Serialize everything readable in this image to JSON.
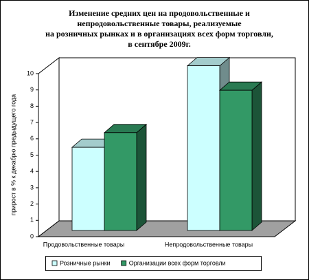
{
  "chart_data": {
    "type": "bar3d",
    "title": [
      "Изменение средних цен на продовольственные и",
      "непродовольственные товары, реализуемые",
      "на розничных рынках и в организациях всех форм торговли,",
      "в сентябре 2009г."
    ],
    "y_label": "прирост в % к декабрю предыдущего года",
    "categories": [
      "Продовольственные товары",
      "Непродовольственные товары"
    ],
    "series": [
      {
        "name": "Розничные рынки",
        "color": "#ccffff",
        "values": [
          5.1,
          10.1
        ]
      },
      {
        "name": "Организации всех форм торговли",
        "color": "#339966",
        "values": [
          6.0,
          8.6
        ]
      }
    ],
    "ylim": [
      0,
      10
    ],
    "yticks": [
      0,
      1,
      2,
      3,
      4,
      5,
      6,
      7,
      8,
      9,
      10
    ],
    "grid": false,
    "legend": "bottom",
    "floor_color": "#a0a0a0"
  }
}
